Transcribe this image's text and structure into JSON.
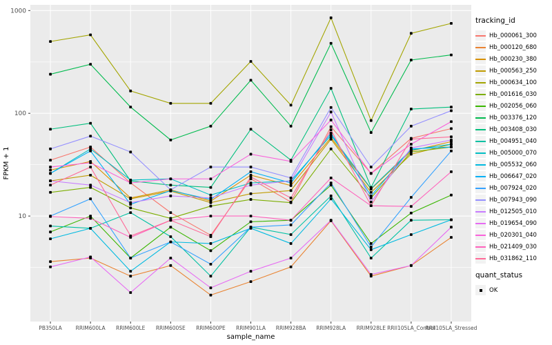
{
  "chart": {
    "panel_bg": "#EBEBEB",
    "grid_color": "#FFFFFF",
    "tick_color": "#333333",
    "tick_label_color": "#4D4D4D",
    "point_color": "#000000"
  },
  "chart_data": {
    "type": "line",
    "title": "",
    "xlabel": "sample_name",
    "ylabel": "FPKM + 1",
    "y_scale": "log10",
    "ylim": [
      1,
      1100
    ],
    "y_ticks": [
      10,
      100,
      1000
    ],
    "y_minor_gridlines": [
      3.16,
      31.6,
      316
    ],
    "grid": true,
    "legend_position": "right",
    "legend_title": "tracking_id",
    "point_legend": {
      "title": "quant_status",
      "label": "OK"
    },
    "categories": [
      "PB350LA",
      "RRIM600LA",
      "RRIM600LE",
      "RRIM600SE",
      "RRIM600PE",
      "RRIM901LA",
      "RRIM928BA",
      "RRIM928LA",
      "RRIM928LE",
      "RRII105LA_Control",
      "RRII105LA_Stressed"
    ],
    "series": [
      {
        "name": "Hb_000061_300",
        "color": "#F8766D",
        "values": [
          35,
          47,
          21,
          10.8,
          6.5,
          23,
          13.7,
          74,
          26,
          57,
          71
        ]
      },
      {
        "name": "Hb_000120_680",
        "color": "#EA8331",
        "values": [
          3.6,
          3.9,
          2.6,
          3.3,
          1.7,
          2.3,
          3.2,
          9,
          2.6,
          3.3,
          6.2
        ]
      },
      {
        "name": "Hb_000230_380",
        "color": "#D89000",
        "values": [
          28,
          34,
          15,
          18,
          14,
          25,
          19.8,
          58,
          18.3,
          43,
          53
        ]
      },
      {
        "name": "Hb_000563_250",
        "color": "#C09B00",
        "values": [
          22,
          25,
          14.7,
          17.5,
          13.5,
          16.5,
          17.7,
          56,
          17,
          40,
          50
        ]
      },
      {
        "name": "Hb_000634_100",
        "color": "#A3A500",
        "values": [
          500,
          580,
          165,
          125,
          125,
          320,
          120,
          850,
          85,
          600,
          750
        ]
      },
      {
        "name": "Hb_001616_030",
        "color": "#7CAE00",
        "values": [
          17,
          19,
          12,
          9.5,
          12.5,
          14.5,
          13.5,
          45,
          15,
          42,
          47
        ]
      },
      {
        "name": "Hb_002056_060",
        "color": "#39B600",
        "values": [
          7,
          10,
          3.9,
          7.8,
          4.6,
          8.8,
          9.1,
          20,
          5.4,
          10.7,
          16
        ]
      },
      {
        "name": "Hb_003376_120",
        "color": "#00BB4E",
        "values": [
          240,
          300,
          115,
          55,
          75,
          210,
          75,
          480,
          65,
          330,
          370
        ]
      },
      {
        "name": "Hb_003408_030",
        "color": "#00BF7D",
        "values": [
          70,
          80,
          22,
          20,
          19,
          70,
          35,
          175,
          19,
          110,
          115
        ]
      },
      {
        "name": "Hb_004951_040",
        "color": "#00C1A3",
        "values": [
          8,
          7.6,
          10.8,
          6.3,
          2.6,
          7.8,
          6.6,
          15.7,
          3.9,
          9.1,
          9.2
        ]
      },
      {
        "name": "Hb_005000_070",
        "color": "#00BFC4",
        "values": [
          26,
          45,
          22.4,
          23,
          16,
          21,
          22,
          61,
          18.5,
          44,
          50
        ]
      },
      {
        "name": "Hb_005532_060",
        "color": "#00BAE0",
        "values": [
          6,
          7.6,
          2.9,
          5.6,
          5.4,
          7.6,
          5.4,
          14.7,
          4.7,
          6.6,
          9.2
        ]
      },
      {
        "name": "Hb_006647_020",
        "color": "#00B0F6",
        "values": [
          26,
          43,
          13,
          17.7,
          14.5,
          27,
          21,
          64,
          15.7,
          45,
          47
        ]
      },
      {
        "name": "Hb_007924_020",
        "color": "#35A2FF",
        "values": [
          10,
          14.7,
          3.9,
          5.6,
          3.4,
          7.8,
          8.2,
          21,
          5.0,
          15.2,
          43
        ]
      },
      {
        "name": "Hb_007943_090",
        "color": "#9590FF",
        "values": [
          45,
          60,
          42,
          18,
          30,
          30,
          23.5,
          114,
          30,
          75,
          106
        ]
      },
      {
        "name": "Hb_012505_010",
        "color": "#C77CFF",
        "values": [
          22,
          20,
          13.5,
          15.7,
          15,
          20,
          22,
          103,
          13.7,
          46,
          55
        ]
      },
      {
        "name": "Hb_019654_090",
        "color": "#E76BF3",
        "values": [
          3.2,
          4.0,
          1.8,
          3.9,
          2.0,
          2.9,
          3.9,
          9.1,
          2.7,
          3.3,
          7.8
        ]
      },
      {
        "name": "Hb_020301_040",
        "color": "#FA62DB",
        "values": [
          30,
          33,
          21,
          23,
          23,
          40,
          34,
          86,
          26,
          50,
          83
        ]
      },
      {
        "name": "Hb_021409_030",
        "color": "#FF62BC",
        "values": [
          9.9,
          9.5,
          6.2,
          9.1,
          10,
          10,
          9.1,
          23.5,
          12.6,
          12.4,
          27
        ]
      },
      {
        "name": "Hb_031862_110",
        "color": "#FF6A98",
        "values": [
          20,
          30,
          6.4,
          9.1,
          6.3,
          24,
          15,
          69,
          12.6,
          56,
          59
        ]
      }
    ]
  }
}
